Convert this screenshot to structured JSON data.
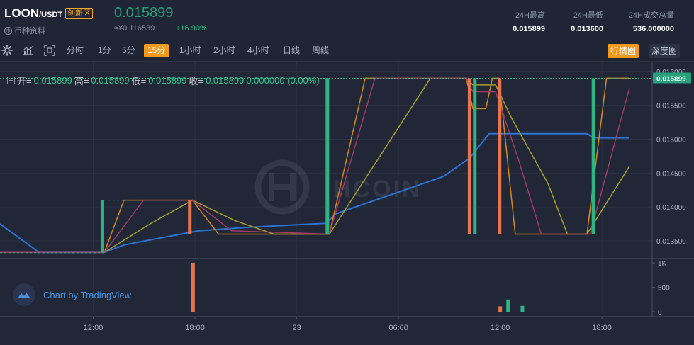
{
  "header": {
    "pair_base": "LOON",
    "pair_quote": "/USDT",
    "zone_badge": "创新区",
    "coin_info": "币种资料",
    "last_price": "0.015899",
    "cny_price": "≈¥0.116539",
    "change": "+16.90%",
    "stats": [
      {
        "label": "24H最高",
        "value": "0.015899"
      },
      {
        "label": "24H最低",
        "value": "0.013600"
      },
      {
        "label": "24H成交总量",
        "value": "536.000000"
      }
    ]
  },
  "toolbar": {
    "icons": [
      "gear-icon",
      "indicator-icon",
      "fullscreen-icon"
    ],
    "intervals": [
      "分时",
      "1分",
      "5分",
      "15分",
      "1小时",
      "2小时",
      "4小时",
      "日线",
      "周线"
    ],
    "active_interval": "15分",
    "views": [
      "行情图",
      "深度图"
    ],
    "active_view": "行情图"
  },
  "ohlc": {
    "open_label": "开=",
    "open": "0.015899",
    "high_label": "高=",
    "high": "0.015899",
    "low_label": "低=",
    "low": "0.015899",
    "close_label": "收=",
    "close": "0.015899",
    "change": "0.000000 (0.00%)"
  },
  "watermark": "HCOIN",
  "tradingview": "Chart by TradingView",
  "chart_data": {
    "type": "candlestick",
    "colors": {
      "up": "#2fb380",
      "down": "#e8734f",
      "ma_blue": "#2a74d6",
      "ma_orange": "#d48a1a",
      "ma_yellow": "#a8a029",
      "ma_magenta": "#a23a66"
    },
    "price_axis": [
      {
        "label": "0.016000",
        "value": 0.016
      },
      {
        "label": "0.015500",
        "value": 0.0155
      },
      {
        "label": "0.015000",
        "value": 0.015
      },
      {
        "label": "0.014500",
        "value": 0.0145
      },
      {
        "label": "0.014000",
        "value": 0.014
      },
      {
        "label": "0.013500",
        "value": 0.0135
      }
    ],
    "price_range": [
      0.01326,
      0.01605
    ],
    "current_price": "0.015899",
    "volume_axis": [
      {
        "label": "1K",
        "value": 1000
      },
      {
        "label": "500",
        "value": 500
      },
      {
        "label": "0",
        "value": 0
      }
    ],
    "volume_range": [
      0,
      1000
    ],
    "time_axis": [
      "12:00",
      "18:00",
      "23",
      "06:00",
      "12:00",
      "18:00"
    ],
    "candles": [
      {
        "t": 0.157,
        "o": 0.01333,
        "h": 0.0141,
        "l": 0.01333,
        "c": 0.0141
      },
      {
        "t": 0.291,
        "o": 0.0141,
        "h": 0.0141,
        "l": 0.0136,
        "c": 0.0136
      },
      {
        "t": 0.502,
        "o": 0.0136,
        "h": 0.0159,
        "l": 0.0136,
        "c": 0.0159
      },
      {
        "t": 0.72,
        "o": 0.0159,
        "h": 0.0159,
        "l": 0.0136,
        "c": 0.0136
      },
      {
        "t": 0.728,
        "o": 0.0136,
        "h": 0.0159,
        "l": 0.0136,
        "c": 0.0159
      },
      {
        "t": 0.766,
        "o": 0.0159,
        "h": 0.0159,
        "l": 0.0136,
        "c": 0.0136
      },
      {
        "t": 0.91,
        "o": 0.0136,
        "h": 0.0159,
        "l": 0.0136,
        "c": 0.0159
      }
    ],
    "volumes": [
      {
        "t": 0.296,
        "v": 1000,
        "dir": "down"
      },
      {
        "t": 0.767,
        "v": 110,
        "dir": "down"
      },
      {
        "t": 0.779,
        "v": 250,
        "dir": "up"
      },
      {
        "t": 0.801,
        "v": 120,
        "dir": "up"
      }
    ],
    "series": [
      {
        "name": "ma-blue",
        "color": "#2a74d6",
        "points": [
          [
            0.0,
            0.01375
          ],
          [
            0.06,
            0.01333
          ],
          [
            0.16,
            0.01333
          ],
          [
            0.19,
            0.01344
          ],
          [
            0.25,
            0.01355
          ],
          [
            0.305,
            0.01365
          ],
          [
            0.38,
            0.0137
          ],
          [
            0.44,
            0.01373
          ],
          [
            0.5,
            0.01376
          ],
          [
            0.515,
            0.0139
          ],
          [
            0.56,
            0.01405
          ],
          [
            0.62,
            0.01425
          ],
          [
            0.68,
            0.01445
          ],
          [
            0.72,
            0.01472
          ],
          [
            0.75,
            0.01508
          ],
          [
            0.78,
            0.01508
          ],
          [
            0.9,
            0.01508
          ],
          [
            0.91,
            0.01502
          ],
          [
            0.965,
            0.01502
          ]
        ]
      },
      {
        "name": "ma-orange",
        "color": "#d48a1a",
        "points": [
          [
            0.0,
            0.01333
          ],
          [
            0.16,
            0.01333
          ],
          [
            0.19,
            0.0141
          ],
          [
            0.295,
            0.0141
          ],
          [
            0.335,
            0.0136
          ],
          [
            0.505,
            0.0136
          ],
          [
            0.56,
            0.0159
          ],
          [
            0.715,
            0.0159
          ],
          [
            0.725,
            0.01545
          ],
          [
            0.745,
            0.01545
          ],
          [
            0.755,
            0.0159
          ],
          [
            0.765,
            0.0159
          ],
          [
            0.79,
            0.0136
          ],
          [
            0.9,
            0.0136
          ],
          [
            0.93,
            0.0159
          ],
          [
            0.965,
            0.0159
          ]
        ]
      },
      {
        "name": "ma-yellow",
        "color": "#a8a029",
        "points": [
          [
            0.0,
            0.01333
          ],
          [
            0.16,
            0.01333
          ],
          [
            0.23,
            0.01375
          ],
          [
            0.295,
            0.0141
          ],
          [
            0.36,
            0.0138
          ],
          [
            0.42,
            0.0136
          ],
          [
            0.505,
            0.0136
          ],
          [
            0.66,
            0.0159
          ],
          [
            0.715,
            0.0159
          ],
          [
            0.725,
            0.0158
          ],
          [
            0.76,
            0.0158
          ],
          [
            0.785,
            0.0153
          ],
          [
            0.84,
            0.01435
          ],
          [
            0.87,
            0.0136
          ],
          [
            0.9,
            0.0136
          ],
          [
            0.965,
            0.0146
          ]
        ]
      },
      {
        "name": "ma-magenta",
        "color": "#a23a66",
        "points": [
          [
            0.0,
            0.01333
          ],
          [
            0.16,
            0.01333
          ],
          [
            0.22,
            0.0141
          ],
          [
            0.295,
            0.0141
          ],
          [
            0.355,
            0.01365
          ],
          [
            0.505,
            0.0136
          ],
          [
            0.575,
            0.0159
          ],
          [
            0.715,
            0.0159
          ],
          [
            0.725,
            0.0157
          ],
          [
            0.76,
            0.0157
          ],
          [
            0.795,
            0.0147
          ],
          [
            0.83,
            0.0136
          ],
          [
            0.905,
            0.0136
          ],
          [
            0.965,
            0.01575
          ]
        ]
      }
    ]
  }
}
